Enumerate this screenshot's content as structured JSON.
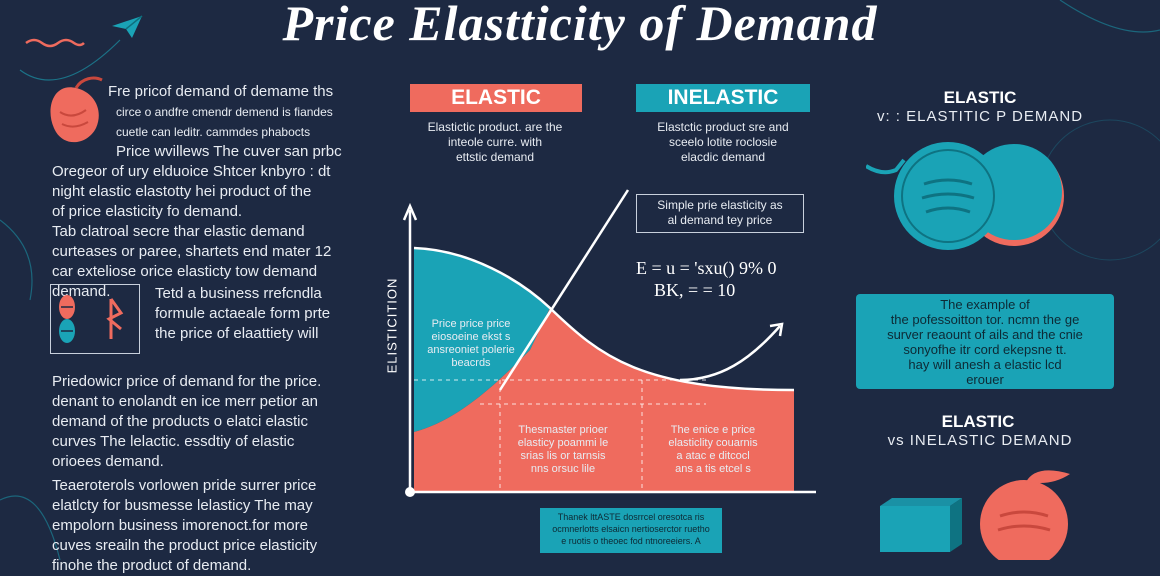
{
  "title": "Price Elastticity of Demand",
  "colors": {
    "background": "#1d2942",
    "elastic": "#ef6b5e",
    "inelastic": "#1aa3b6",
    "text": "#e8ecf2"
  },
  "left": {
    "para1": [
      "Fre pricof demand of demame ths",
      "circe o andfre cmendr demend is fiandes",
      "cuetle can leditr. cammdes phabocts",
      "Price wvillews The cuver san prbc",
      "Oregeor of ury elduoice Shtcer knbyro : dt",
      "night elastic elastotty hei product of the",
      "of price elasticity fo demand.",
      "Tab clatroal secre thar elastic demand",
      "curteases or paree, shartets end mater 12",
      "car exteliose orice elasticty tow demand",
      "demand."
    ],
    "para2": [
      "Tetd a business rrefcndla",
      "formule actaeale form prte",
      "the price of elaattiety will"
    ],
    "para3": [
      "Priedowicr price of demand for the price.",
      "denant to enolandt en ice merr petior an",
      "demand of the products o elatci elastic",
      "curves The lelactic. essdtiy of elastic",
      "orioees demand."
    ],
    "para4": [
      "Teaeroterols vorlowen pride surrer price",
      "elatlcty for busmesse lelasticy The may",
      "empolorn business imorenoct.for more",
      "cuves sreailn the product price elasticity",
      "finohe the product of demand."
    ]
  },
  "center": {
    "elastic_label": "ELASTIC",
    "inelastic_label": "INELASTIC",
    "elastic_desc": [
      "Elastictic product. are the",
      "inteole curre. with",
      "ettstic demand"
    ],
    "inelastic_desc": [
      "Elastctic product sre and",
      "sceelo lotite roclosie",
      "elacdic demand"
    ],
    "note_box": [
      "Simple prie elasticity as",
      "al demand tey price"
    ],
    "formula1": "E = u = 'sxu() 9% 0",
    "formula2": "BK, = = 10",
    "y_axis_label": "ELISTICITION",
    "teal_region_text": [
      "Price price price",
      "eiosoeine ekst s",
      "ansreoniet polerie",
      "beacrds"
    ],
    "red_region_text_left": [
      "Thesmaster prioer",
      "elasticy poammi le",
      "srias lis or tarnsis",
      "nns orsuc lile"
    ],
    "red_region_text_right": [
      "The enice e price",
      "elasticlity couarnis",
      "a atac e ditcocl",
      "ans a tis etcel s"
    ],
    "bottom_box": [
      "Thanek lttASTE dosrrcel oresotca ris",
      "ocmnerlotts elsaicn nertioserctor ruetho",
      "e ruotis o  theoec fod ntnoreeiers. A"
    ]
  },
  "right": {
    "heading1": "ELASTIC",
    "subheading1": "v: : ELASTITIC P DEMAND",
    "example_box": [
      "The example of",
      "the pofessoitton tor. ncmn the ge",
      "surver reaount of ails and the cnie",
      "sonyofhe itr cord ekepsne tt.",
      "hay will anesh a elastic lcd",
      "erouer"
    ],
    "heading2": "ELASTIC",
    "subheading2": "vs INELASTIC DEMAND"
  }
}
